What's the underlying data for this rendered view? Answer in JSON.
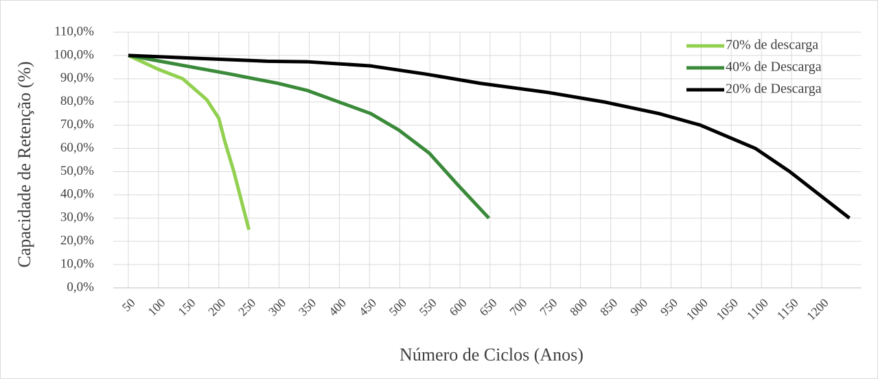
{
  "chart_data": {
    "type": "line",
    "xlabel": "Número de Ciclos (Anos)",
    "ylabel": "Capacidade de Retenção (%)",
    "series": [
      {
        "name": "70% de descarga",
        "color": "#92d050",
        "x": [
          50,
          100,
          140,
          180,
          200,
          210,
          225,
          250
        ],
        "values": [
          100,
          94,
          90,
          81,
          73,
          63,
          50,
          25
        ]
      },
      {
        "name": "40% de Descarga",
        "color": "#3a8a3a",
        "x": [
          50,
          219,
          298,
          346,
          452,
          498,
          549,
          594,
          648
        ],
        "values": [
          100,
          92,
          88,
          85,
          75,
          68,
          58,
          45,
          30
        ]
      },
      {
        "name": "20% de Descarga",
        "color": "#000000",
        "x": [
          50,
          281,
          346,
          452,
          543,
          634,
          748,
          839,
          930,
          999,
          1090,
          1147,
          1246
        ],
        "values": [
          100,
          97.5,
          97.3,
          95.5,
          92,
          88,
          84,
          80,
          75,
          70,
          60,
          50,
          30
        ]
      }
    ],
    "xlim": [
      25,
      1266
    ],
    "xticks": [
      50,
      100,
      150,
      200,
      250,
      300,
      350,
      400,
      450,
      500,
      550,
      600,
      650,
      700,
      750,
      800,
      850,
      900,
      950,
      1000,
      1050,
      1100,
      1150,
      1200
    ],
    "ylim": [
      0,
      110
    ],
    "yticks": [
      {
        "value": 0,
        "label": "0,0%"
      },
      {
        "value": 10,
        "label": "10,0%"
      },
      {
        "value": 20,
        "label": "20,0%"
      },
      {
        "value": 30,
        "label": "30,0%"
      },
      {
        "value": 40,
        "label": "40,0%"
      },
      {
        "value": 50,
        "label": "50,0%"
      },
      {
        "value": 60,
        "label": "60,0%"
      },
      {
        "value": 70,
        "label": "70,0%"
      },
      {
        "value": 80,
        "label": "80,0%"
      },
      {
        "value": 90,
        "label": "90,0%"
      },
      {
        "value": 100,
        "label": "100,0%"
      },
      {
        "value": 110,
        "label": "110,0%"
      }
    ],
    "grid": true,
    "legend": "top-right"
  }
}
